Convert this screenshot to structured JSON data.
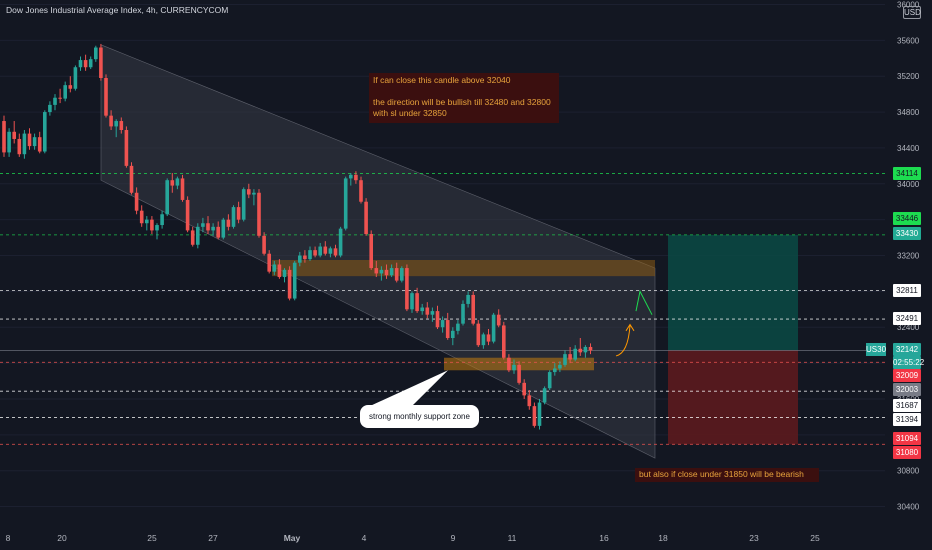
{
  "header": {
    "title": "Dow Jones Industrial Average Index, 4h, CURRENCYCOM",
    "currency": "USD"
  },
  "annotations": {
    "bull_note": "If can close this candle above 32040\n\nthe direction will be bullish till 32480 and 32800\nwith sl  under 32850",
    "support_callout": "strong monthly support zone",
    "bear_note": "but also if close under 31850 will be bearish"
  },
  "price_tags": [
    {
      "label": "34114",
      "value": 34114,
      "bg": "#1ddc50",
      "fg": "#131722"
    },
    {
      "label": "33446",
      "value": 33446,
      "bg": "#1ddc50",
      "fg": "#131722"
    },
    {
      "label": "33430",
      "value": 33430,
      "bg": "#22ab94",
      "fg": "#ffffff"
    },
    {
      "label": "32811",
      "value": 32811,
      "bg": "#ffffff",
      "fg": "#131722"
    },
    {
      "label": "32491",
      "value": 32491,
      "bg": "#ffffff",
      "fg": "#131722"
    },
    {
      "label": "32142",
      "value": 32142,
      "bg": "#26a69a",
      "fg": "#ffffff"
    },
    {
      "label": "02:55:22",
      "value": 32030,
      "bg": "#26a69a",
      "fg": "#ffffff"
    },
    {
      "label": "32009",
      "value": 31950,
      "bg": "#f23645",
      "fg": "#ffffff"
    },
    {
      "label": "32003",
      "value": 31850,
      "bg": "#787b86",
      "fg": "#ffffff"
    },
    {
      "label": "31687",
      "value": 31687,
      "bg": "#ffffff",
      "fg": "#131722"
    },
    {
      "label": "31394",
      "value": 31394,
      "bg": "#ffffff",
      "fg": "#131722"
    },
    {
      "label": "31094",
      "value": 31094,
      "bg": "#f23645",
      "fg": "#ffffff"
    },
    {
      "label": "31080",
      "value": 30950,
      "bg": "#f23645",
      "fg": "#ffffff"
    }
  ],
  "symbol_tag": "US30",
  "colors": {
    "up": "#26a69a",
    "down": "#ef5350",
    "background": "#131722",
    "channel": "#363a45",
    "zone": "#8a5a12",
    "target": "#0b4a44",
    "stop": "#5c1a1e",
    "note_bg": "#3b0f0f",
    "note_text": "#e8a33c"
  },
  "chart_data": {
    "type": "candlestick",
    "symbol": "US30",
    "timeframe": "4h",
    "y_ticks": [
      36000,
      35600,
      35200,
      34800,
      34400,
      34000,
      33600,
      33200,
      32800,
      32400,
      32000,
      31600,
      31200,
      30800,
      30400
    ],
    "ylim": [
      30250,
      36050
    ],
    "x_ticks": [
      "8",
      "20",
      "25",
      "27",
      "May",
      "4",
      "9",
      "11",
      "16",
      "18",
      "23",
      "25"
    ],
    "horizontal_levels": [
      {
        "value": 34114,
        "color": "#1ddc50",
        "style": "dashed"
      },
      {
        "value": 33430,
        "color": "#1ddc50",
        "style": "dashed"
      },
      {
        "value": 32811,
        "color": "#ffffff",
        "style": "dashed"
      },
      {
        "value": 32491,
        "color": "#ffffff",
        "style": "dashed"
      },
      {
        "value": 32142,
        "color": "#787b86",
        "style": "solid"
      },
      {
        "value": 32009,
        "color": "#ef5350",
        "style": "dashed"
      },
      {
        "value": 31687,
        "color": "#ffffff",
        "style": "dashed"
      },
      {
        "value": 31394,
        "color": "#ffffff",
        "style": "dashed"
      },
      {
        "value": 31094,
        "color": "#ef5350",
        "style": "dashed"
      }
    ],
    "descending_channel": {
      "upper": [
        [
          35550,
          33060
        ]
      ],
      "lower": [
        [
          34040,
          30940
        ]
      ]
    },
    "zones": [
      {
        "from": 32970,
        "to": 33150
      },
      {
        "from": 31920,
        "to": 32060
      }
    ],
    "position": {
      "entry": 32142,
      "target": 33430,
      "stop": 31094
    },
    "candles": [
      {
        "o": 34700,
        "h": 34760,
        "l": 34300,
        "c": 34350
      },
      {
        "o": 34350,
        "h": 34620,
        "l": 34300,
        "c": 34580
      },
      {
        "o": 34580,
        "h": 34700,
        "l": 34450,
        "c": 34500
      },
      {
        "o": 34500,
        "h": 34560,
        "l": 34300,
        "c": 34330
      },
      {
        "o": 34330,
        "h": 34600,
        "l": 34280,
        "c": 34560
      },
      {
        "o": 34560,
        "h": 34620,
        "l": 34380,
        "c": 34420
      },
      {
        "o": 34420,
        "h": 34560,
        "l": 34380,
        "c": 34520
      },
      {
        "o": 34520,
        "h": 34580,
        "l": 34340,
        "c": 34360
      },
      {
        "o": 34360,
        "h": 34820,
        "l": 34340,
        "c": 34800
      },
      {
        "o": 34800,
        "h": 34920,
        "l": 34760,
        "c": 34880
      },
      {
        "o": 34880,
        "h": 35000,
        "l": 34820,
        "c": 34960
      },
      {
        "o": 34960,
        "h": 35060,
        "l": 34900,
        "c": 34950
      },
      {
        "o": 34950,
        "h": 35140,
        "l": 34920,
        "c": 35100
      },
      {
        "o": 35100,
        "h": 35200,
        "l": 35020,
        "c": 35060
      },
      {
        "o": 35060,
        "h": 35320,
        "l": 35040,
        "c": 35300
      },
      {
        "o": 35300,
        "h": 35420,
        "l": 35260,
        "c": 35380
      },
      {
        "o": 35380,
        "h": 35440,
        "l": 35260,
        "c": 35300
      },
      {
        "o": 35300,
        "h": 35420,
        "l": 35280,
        "c": 35390
      },
      {
        "o": 35390,
        "h": 35540,
        "l": 35360,
        "c": 35520
      },
      {
        "o": 35520,
        "h": 35560,
        "l": 35150,
        "c": 35180
      },
      {
        "o": 35180,
        "h": 35220,
        "l": 34740,
        "c": 34760
      },
      {
        "o": 34760,
        "h": 34820,
        "l": 34600,
        "c": 34640
      },
      {
        "o": 34640,
        "h": 34720,
        "l": 34520,
        "c": 34700
      },
      {
        "o": 34700,
        "h": 34740,
        "l": 34560,
        "c": 34600
      },
      {
        "o": 34600,
        "h": 34640,
        "l": 34180,
        "c": 34200
      },
      {
        "o": 34200,
        "h": 34240,
        "l": 33880,
        "c": 33900
      },
      {
        "o": 33900,
        "h": 33960,
        "l": 33660,
        "c": 33700
      },
      {
        "o": 33700,
        "h": 33760,
        "l": 33520,
        "c": 33560
      },
      {
        "o": 33560,
        "h": 33640,
        "l": 33480,
        "c": 33600
      },
      {
        "o": 33600,
        "h": 33640,
        "l": 33440,
        "c": 33480
      },
      {
        "o": 33480,
        "h": 33560,
        "l": 33380,
        "c": 33540
      },
      {
        "o": 33540,
        "h": 33700,
        "l": 33500,
        "c": 33660
      },
      {
        "o": 33660,
        "h": 34060,
        "l": 33640,
        "c": 34040
      },
      {
        "o": 34040,
        "h": 34120,
        "l": 33900,
        "c": 33980
      },
      {
        "o": 33980,
        "h": 34080,
        "l": 33940,
        "c": 34060
      },
      {
        "o": 34060,
        "h": 34100,
        "l": 33800,
        "c": 33820
      },
      {
        "o": 33820,
        "h": 33860,
        "l": 33460,
        "c": 33480
      },
      {
        "o": 33480,
        "h": 33520,
        "l": 33300,
        "c": 33320
      },
      {
        "o": 33320,
        "h": 33560,
        "l": 33280,
        "c": 33520
      },
      {
        "o": 33520,
        "h": 33620,
        "l": 33460,
        "c": 33560
      },
      {
        "o": 33560,
        "h": 33640,
        "l": 33440,
        "c": 33480
      },
      {
        "o": 33480,
        "h": 33560,
        "l": 33420,
        "c": 33520
      },
      {
        "o": 33520,
        "h": 33580,
        "l": 33380,
        "c": 33400
      },
      {
        "o": 33400,
        "h": 33620,
        "l": 33380,
        "c": 33600
      },
      {
        "o": 33600,
        "h": 33660,
        "l": 33480,
        "c": 33520
      },
      {
        "o": 33520,
        "h": 33760,
        "l": 33500,
        "c": 33740
      },
      {
        "o": 33740,
        "h": 33800,
        "l": 33560,
        "c": 33600
      },
      {
        "o": 33600,
        "h": 33960,
        "l": 33580,
        "c": 33940
      },
      {
        "o": 33940,
        "h": 34000,
        "l": 33840,
        "c": 33880
      },
      {
        "o": 33880,
        "h": 33940,
        "l": 33760,
        "c": 33900
      },
      {
        "o": 33900,
        "h": 33940,
        "l": 33400,
        "c": 33420
      },
      {
        "o": 33420,
        "h": 33460,
        "l": 33200,
        "c": 33220
      },
      {
        "o": 33220,
        "h": 33260,
        "l": 33000,
        "c": 33020
      },
      {
        "o": 33020,
        "h": 33140,
        "l": 32980,
        "c": 33100
      },
      {
        "o": 33100,
        "h": 33160,
        "l": 32940,
        "c": 32960
      },
      {
        "o": 32960,
        "h": 33060,
        "l": 32900,
        "c": 33040
      },
      {
        "o": 33040,
        "h": 33080,
        "l": 32700,
        "c": 32720
      },
      {
        "o": 32720,
        "h": 33140,
        "l": 32700,
        "c": 33120
      },
      {
        "o": 33120,
        "h": 33240,
        "l": 33080,
        "c": 33200
      },
      {
        "o": 33200,
        "h": 33260,
        "l": 33120,
        "c": 33160
      },
      {
        "o": 33160,
        "h": 33300,
        "l": 33140,
        "c": 33260
      },
      {
        "o": 33260,
        "h": 33300,
        "l": 33180,
        "c": 33200
      },
      {
        "o": 33200,
        "h": 33340,
        "l": 33180,
        "c": 33300
      },
      {
        "o": 33300,
        "h": 33360,
        "l": 33200,
        "c": 33220
      },
      {
        "o": 33220,
        "h": 33300,
        "l": 33180,
        "c": 33280
      },
      {
        "o": 33280,
        "h": 33320,
        "l": 33180,
        "c": 33200
      },
      {
        "o": 33200,
        "h": 33520,
        "l": 33180,
        "c": 33500
      },
      {
        "o": 33500,
        "h": 34080,
        "l": 33480,
        "c": 34060
      },
      {
        "o": 34060,
        "h": 34120,
        "l": 33980,
        "c": 34100
      },
      {
        "o": 34100,
        "h": 34140,
        "l": 34000,
        "c": 34040
      },
      {
        "o": 34040,
        "h": 34080,
        "l": 33780,
        "c": 33800
      },
      {
        "o": 33800,
        "h": 33840,
        "l": 33420,
        "c": 33440
      },
      {
        "o": 33440,
        "h": 33480,
        "l": 33040,
        "c": 33060
      },
      {
        "o": 33060,
        "h": 33140,
        "l": 32960,
        "c": 33000
      },
      {
        "o": 33000,
        "h": 33080,
        "l": 32920,
        "c": 33040
      },
      {
        "o": 33040,
        "h": 33100,
        "l": 32940,
        "c": 32980
      },
      {
        "o": 32980,
        "h": 33100,
        "l": 32960,
        "c": 33060
      },
      {
        "o": 33060,
        "h": 33120,
        "l": 32900,
        "c": 32920
      },
      {
        "o": 32920,
        "h": 33080,
        "l": 32900,
        "c": 33060
      },
      {
        "o": 33060,
        "h": 33100,
        "l": 32580,
        "c": 32600
      },
      {
        "o": 32600,
        "h": 32800,
        "l": 32560,
        "c": 32780
      },
      {
        "o": 32780,
        "h": 32840,
        "l": 32560,
        "c": 32580
      },
      {
        "o": 32580,
        "h": 32660,
        "l": 32540,
        "c": 32620
      },
      {
        "o": 32620,
        "h": 32680,
        "l": 32500,
        "c": 32540
      },
      {
        "o": 32540,
        "h": 32620,
        "l": 32460,
        "c": 32580
      },
      {
        "o": 32580,
        "h": 32640,
        "l": 32380,
        "c": 32400
      },
      {
        "o": 32400,
        "h": 32520,
        "l": 32340,
        "c": 32480
      },
      {
        "o": 32480,
        "h": 32560,
        "l": 32260,
        "c": 32280
      },
      {
        "o": 32280,
        "h": 32400,
        "l": 32200,
        "c": 32360
      },
      {
        "o": 32360,
        "h": 32480,
        "l": 32320,
        "c": 32440
      },
      {
        "o": 32440,
        "h": 32700,
        "l": 32420,
        "c": 32660
      },
      {
        "o": 32660,
        "h": 32800,
        "l": 32620,
        "c": 32760
      },
      {
        "o": 32760,
        "h": 32800,
        "l": 32420,
        "c": 32440
      },
      {
        "o": 32440,
        "h": 32480,
        "l": 32180,
        "c": 32200
      },
      {
        "o": 32200,
        "h": 32340,
        "l": 32160,
        "c": 32320
      },
      {
        "o": 32320,
        "h": 32380,
        "l": 32200,
        "c": 32240
      },
      {
        "o": 32240,
        "h": 32560,
        "l": 32220,
        "c": 32540
      },
      {
        "o": 32540,
        "h": 32600,
        "l": 32400,
        "c": 32420
      },
      {
        "o": 32420,
        "h": 32460,
        "l": 32040,
        "c": 32060
      },
      {
        "o": 32060,
        "h": 32100,
        "l": 31900,
        "c": 31920
      },
      {
        "o": 31920,
        "h": 32040,
        "l": 31880,
        "c": 31980
      },
      {
        "o": 31980,
        "h": 32020,
        "l": 31760,
        "c": 31780
      },
      {
        "o": 31780,
        "h": 31820,
        "l": 31600,
        "c": 31640
      },
      {
        "o": 31640,
        "h": 31700,
        "l": 31480,
        "c": 31520
      },
      {
        "o": 31520,
        "h": 31560,
        "l": 31280,
        "c": 31300
      },
      {
        "o": 31300,
        "h": 31600,
        "l": 31260,
        "c": 31560
      },
      {
        "o": 31560,
        "h": 31740,
        "l": 31540,
        "c": 31720
      },
      {
        "o": 31720,
        "h": 31920,
        "l": 31700,
        "c": 31900
      },
      {
        "o": 31900,
        "h": 32000,
        "l": 31860,
        "c": 31940
      },
      {
        "o": 31940,
        "h": 32020,
        "l": 31900,
        "c": 31980
      },
      {
        "o": 31980,
        "h": 32140,
        "l": 31960,
        "c": 32100
      },
      {
        "o": 32100,
        "h": 32180,
        "l": 32000,
        "c": 32040
      },
      {
        "o": 32040,
        "h": 32200,
        "l": 32020,
        "c": 32160
      },
      {
        "o": 32160,
        "h": 32280,
        "l": 32080,
        "c": 32120
      },
      {
        "o": 32120,
        "h": 32200,
        "l": 32060,
        "c": 32180
      },
      {
        "o": 32180,
        "h": 32220,
        "l": 32100,
        "c": 32140
      }
    ]
  }
}
